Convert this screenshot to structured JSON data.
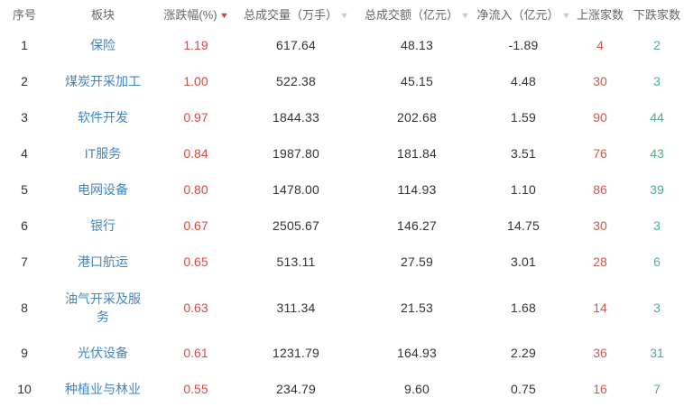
{
  "colors": {
    "link_blue": "#4285c0",
    "change_red": "#dc4843",
    "up_count_red": "#cb5a50",
    "down_count_green": "#52ae86",
    "sort_active_red": "#dc3c39",
    "sort_inactive_gray": "#c9c9c9",
    "header_text": "#666666",
    "body_text": "#333333",
    "background": "#ffffff"
  },
  "icons": {
    "sort_desc": "▼"
  },
  "table": {
    "columns": [
      {
        "key": "index",
        "label": "序号",
        "sort": "none"
      },
      {
        "key": "sector",
        "label": "板块",
        "sort": "none"
      },
      {
        "key": "change",
        "label": "涨跌幅(%)",
        "sort": "active-desc"
      },
      {
        "key": "volume",
        "label": "总成交量（万手）",
        "sort": "inactive"
      },
      {
        "key": "turnover",
        "label": "总成交额（亿元）",
        "sort": "inactive"
      },
      {
        "key": "inflow",
        "label": "净流入（亿元）",
        "sort": "inactive"
      },
      {
        "key": "up",
        "label": "上涨家数",
        "sort": "none"
      },
      {
        "key": "down",
        "label": "下跌家数",
        "sort": "none"
      }
    ],
    "rows": [
      {
        "index": "1",
        "sector": "保险",
        "change": "1.19",
        "volume": "617.64",
        "turnover": "48.13",
        "inflow": "-1.89",
        "up": "4",
        "down": "2"
      },
      {
        "index": "2",
        "sector": "煤炭开采加工",
        "change": "1.00",
        "volume": "522.38",
        "turnover": "45.15",
        "inflow": "4.48",
        "up": "30",
        "down": "3"
      },
      {
        "index": "3",
        "sector": "软件开发",
        "change": "0.97",
        "volume": "1844.33",
        "turnover": "202.68",
        "inflow": "1.59",
        "up": "90",
        "down": "44"
      },
      {
        "index": "4",
        "sector": "IT服务",
        "change": "0.84",
        "volume": "1987.80",
        "turnover": "181.84",
        "inflow": "3.51",
        "up": "76",
        "down": "43"
      },
      {
        "index": "5",
        "sector": "电网设备",
        "change": "0.80",
        "volume": "1478.00",
        "turnover": "114.93",
        "inflow": "1.10",
        "up": "86",
        "down": "39"
      },
      {
        "index": "6",
        "sector": "银行",
        "change": "0.67",
        "volume": "2505.67",
        "turnover": "146.27",
        "inflow": "14.75",
        "up": "30",
        "down": "3"
      },
      {
        "index": "7",
        "sector": "港口航运",
        "change": "0.65",
        "volume": "513.11",
        "turnover": "27.59",
        "inflow": "3.01",
        "up": "28",
        "down": "6"
      },
      {
        "index": "8",
        "sector": "油气开采及服务",
        "change": "0.63",
        "volume": "311.34",
        "turnover": "21.53",
        "inflow": "1.68",
        "up": "14",
        "down": "3"
      },
      {
        "index": "9",
        "sector": "光伏设备",
        "change": "0.61",
        "volume": "1231.79",
        "turnover": "164.93",
        "inflow": "2.29",
        "up": "36",
        "down": "31"
      },
      {
        "index": "10",
        "sector": "种植业与林业",
        "change": "0.55",
        "volume": "234.79",
        "turnover": "9.60",
        "inflow": "0.75",
        "up": "16",
        "down": "7"
      }
    ]
  }
}
